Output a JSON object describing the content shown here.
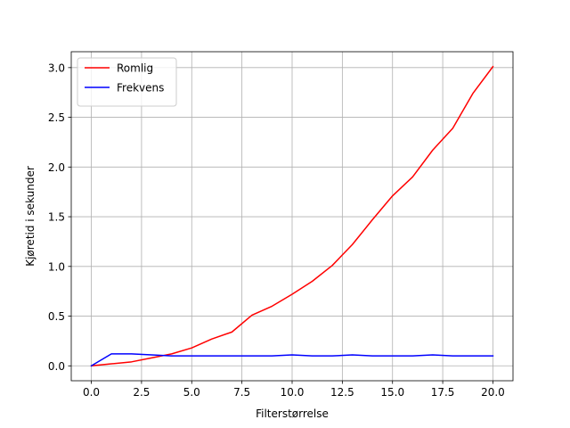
{
  "chart_data": {
    "type": "line",
    "title": "",
    "xlabel": "Filterstørrelse",
    "ylabel": "Kjøretid i sekunder",
    "xlim": [
      -1,
      21
    ],
    "ylim": [
      -0.15,
      3.16
    ],
    "xticks": [
      0.0,
      2.5,
      5.0,
      7.5,
      10.0,
      12.5,
      15.0,
      17.5,
      20.0
    ],
    "xtick_labels": [
      "0.0",
      "2.5",
      "5.0",
      "7.5",
      "10.0",
      "12.5",
      "15.0",
      "17.5",
      "20.0"
    ],
    "yticks": [
      0.0,
      0.5,
      1.0,
      1.5,
      2.0,
      2.5,
      3.0
    ],
    "ytick_labels": [
      "0.0",
      "0.5",
      "1.0",
      "1.5",
      "2.0",
      "2.5",
      "3.0"
    ],
    "grid": true,
    "legend_position": "top-left",
    "x": [
      0,
      1,
      2,
      3,
      4,
      5,
      6,
      7,
      8,
      9,
      10,
      11,
      12,
      13,
      14,
      15,
      16,
      17,
      18,
      19,
      20
    ],
    "series": [
      {
        "name": "Romlig",
        "color": "#ff0000",
        "values": [
          0.0,
          0.02,
          0.04,
          0.08,
          0.12,
          0.18,
          0.27,
          0.34,
          0.51,
          0.6,
          0.72,
          0.85,
          1.01,
          1.22,
          1.47,
          1.71,
          1.9,
          2.17,
          2.39,
          2.74,
          3.01
        ]
      },
      {
        "name": "Frekvens",
        "color": "#0000ff",
        "values": [
          0.0,
          0.12,
          0.12,
          0.11,
          0.1,
          0.1,
          0.1,
          0.1,
          0.1,
          0.1,
          0.11,
          0.1,
          0.1,
          0.11,
          0.1,
          0.1,
          0.1,
          0.11,
          0.1,
          0.1,
          0.1
        ]
      }
    ]
  }
}
